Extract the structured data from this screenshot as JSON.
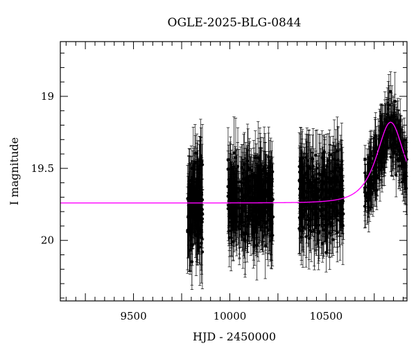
{
  "chart_data": {
    "type": "scatter",
    "title": "OGLE-2025-BLG-0844",
    "xlabel": "HJD - 2450000",
    "ylabel": "I magnitude",
    "xlim": [
      9120,
      10920
    ],
    "ylim": [
      20.42,
      18.62
    ],
    "y_inverted": true,
    "x_ticks_labeled": [
      9500,
      10000,
      10500
    ],
    "y_ticks_labeled": [
      19,
      19.5,
      20
    ],
    "x_tick_labels": [
      "9500",
      "10000",
      "10500"
    ],
    "y_tick_labels": [
      "19",
      "19.5",
      "20"
    ],
    "grid": false,
    "colors": {
      "points": "#000000",
      "model": "#ff00ff",
      "frame": "#000000"
    },
    "series": [
      {
        "kind": "observations_with_errorbars",
        "marker": "filled-circle",
        "seasons": [
          {
            "x_range": [
              9780,
              9860
            ],
            "mag_center": 19.75,
            "mag_spread": 0.55,
            "err_range": [
              0.1,
              0.3
            ]
          },
          {
            "x_range": [
              9990,
              10225
            ],
            "mag_center": 19.72,
            "mag_spread": 0.45,
            "err_range": [
              0.1,
              0.28
            ]
          },
          {
            "x_range": [
              10360,
              10590
            ],
            "mag_center": 19.7,
            "mag_spread": 0.45,
            "err_range": [
              0.1,
              0.28
            ]
          },
          {
            "x_range": [
              10700,
              10920
            ],
            "mag_center": "follows model",
            "mag_spread": 0.3,
            "err_range": [
              0.08,
              0.22
            ]
          }
        ]
      },
      {
        "kind": "model_curve",
        "baseline_mag": 19.74,
        "peak_mag": 19.18,
        "peak_x": 10835,
        "t_E": 95,
        "u0": 0.85
      }
    ]
  }
}
